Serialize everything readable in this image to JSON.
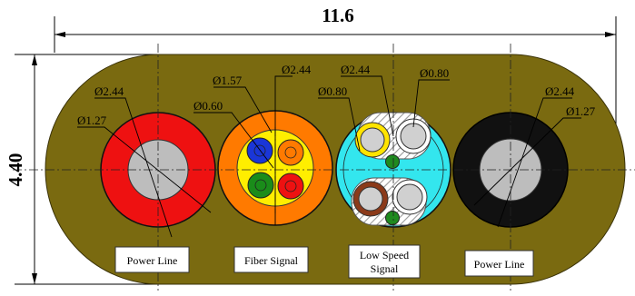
{
  "dimensions": {
    "width": "11.6",
    "height": "4.40"
  },
  "cables": [
    {
      "id": "power-line-left",
      "label": "Power Line",
      "annotations": [
        "Ø2.44",
        "Ø1.27"
      ]
    },
    {
      "id": "fiber-signal",
      "label": "Fiber Signal",
      "annotations": [
        "Ø1.57",
        "Ø2.44",
        "Ø0.60"
      ]
    },
    {
      "id": "low-speed-signal",
      "label_line1": "Low Speed",
      "label_line2": "Signal",
      "annotations": [
        "Ø2.44",
        "Ø0.80",
        "Ø0.80"
      ]
    },
    {
      "id": "power-line-right",
      "label": "Power Line",
      "annotations": [
        "Ø2.44",
        "Ø1.27"
      ]
    }
  ],
  "colors": {
    "jacket": "#7a6a10",
    "power_left_insulation": "#ee1111",
    "power_right_insulation": "#111111",
    "conductor": "#bdbdbd",
    "fiber_outer": "#ff7a00",
    "fiber_inner": "#ffee00",
    "fiber_blue": "#1a36d8",
    "fiber_orange": "#ff7a00",
    "fiber_green": "#1a8c1a",
    "fiber_red": "#ee1111",
    "lowspeed_fill": "#33e6ee",
    "lowspeed_yellow_ring": "#ffe400",
    "lowspeed_brown_ring": "#8b3a1a",
    "lowspeed_green": "#1f8a1f"
  }
}
